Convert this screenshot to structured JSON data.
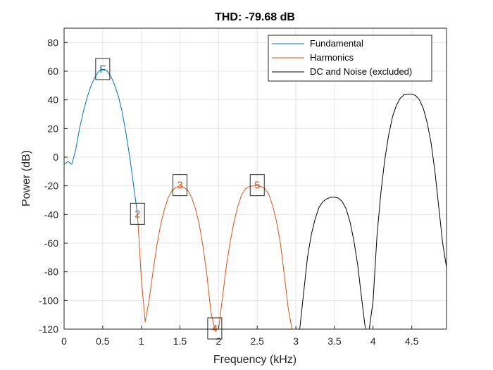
{
  "chart_data": {
    "type": "line",
    "title": "THD: -79.68 dB",
    "xlabel": "Frequency (kHz)",
    "ylabel": "Power (dB)",
    "xlim": [
      0,
      4.95
    ],
    "ylim": [
      -120,
      90
    ],
    "xticks": [
      0,
      0.5,
      1,
      1.5,
      2,
      2.5,
      3,
      3.5,
      4,
      4.5
    ],
    "xtick_labels": [
      "0",
      "0.5",
      "1",
      "1.5",
      "2",
      "2.5",
      "3",
      "3.5",
      "4",
      "4.5"
    ],
    "yticks": [
      -120,
      -100,
      -80,
      -60,
      -40,
      -20,
      0,
      20,
      40,
      60,
      80
    ],
    "ytick_labels": [
      "-120",
      "-100",
      "-80",
      "-60",
      "-40",
      "-20",
      "0",
      "20",
      "40",
      "60",
      "80"
    ],
    "grid": true,
    "legend_position": "top-right",
    "series": [
      {
        "name": "Fundamental",
        "color": "#0072BD",
        "x": [
          0,
          0.05,
          0.1,
          0.15,
          0.2,
          0.25,
          0.3,
          0.35,
          0.4,
          0.45,
          0.5,
          0.55,
          0.6,
          0.65,
          0.7,
          0.75,
          0.8,
          0.85,
          0.9,
          0.95
        ],
        "y": [
          -5,
          -3,
          -5,
          5,
          20,
          32,
          42,
          50,
          56,
          60,
          61,
          60.5,
          57,
          51,
          43,
          32,
          17,
          0,
          -20,
          -40
        ]
      },
      {
        "name": "Harmonics",
        "color": "#D95319",
        "x": [
          0.95,
          1.0,
          1.05,
          1.1,
          1.15,
          1.2,
          1.25,
          1.3,
          1.35,
          1.4,
          1.45,
          1.5,
          1.55,
          1.6,
          1.65,
          1.7,
          1.75,
          1.8,
          1.85,
          1.9,
          1.95,
          2.0,
          2.05,
          2.1,
          2.15,
          2.2,
          2.25,
          2.3,
          2.35,
          2.4,
          2.45,
          2.5,
          2.55,
          2.6,
          2.65,
          2.7,
          2.75,
          2.8,
          2.85,
          2.9,
          2.95
        ],
        "y": [
          -40,
          -85,
          -115,
          -100,
          -80,
          -62,
          -47,
          -36,
          -28,
          -23,
          -21,
          -20,
          -21,
          -23,
          -28,
          -36,
          -47,
          -63,
          -83,
          -108,
          -122,
          -120,
          -98,
          -76,
          -59,
          -45,
          -34,
          -26,
          -22,
          -20.5,
          -20,
          -20,
          -20.5,
          -22,
          -26,
          -34,
          -45,
          -60,
          -82,
          -105,
          -122
        ]
      },
      {
        "name": "DC and Noise (excluded)",
        "color": "#000000",
        "x": [
          2.95,
          3.0,
          3.05,
          3.1,
          3.15,
          3.2,
          3.25,
          3.3,
          3.35,
          3.4,
          3.45,
          3.5,
          3.55,
          3.6,
          3.65,
          3.7,
          3.75,
          3.8,
          3.85,
          3.9,
          3.95,
          4.0,
          4.05,
          4.1,
          4.15,
          4.2,
          4.25,
          4.3,
          4.35,
          4.4,
          4.45,
          4.5,
          4.55,
          4.6,
          4.65,
          4.7,
          4.75,
          4.8,
          4.85,
          4.9,
          4.95
        ],
        "y": [
          -122,
          -122,
          -120,
          -95,
          -70,
          -54,
          -43,
          -35,
          -31,
          -29,
          -28,
          -28,
          -28.5,
          -31,
          -36,
          -45,
          -58,
          -75,
          -98,
          -120,
          -122,
          -100,
          -55,
          -25,
          -2,
          15,
          28,
          36,
          41,
          43.5,
          44,
          44,
          43,
          40,
          34,
          24,
          10,
          -10,
          -35,
          -60,
          -77
        ]
      }
    ],
    "markers": [
      {
        "text": "F",
        "x": 0.5,
        "y": 61,
        "color": "#0072BD"
      },
      {
        "text": "2",
        "x": 0.95,
        "y": -40,
        "color": "#D95319"
      },
      {
        "text": "3",
        "x": 1.5,
        "y": -20,
        "color": "#D95319"
      },
      {
        "text": "4",
        "x": 1.95,
        "y": -120,
        "color": "#D95319"
      },
      {
        "text": "5",
        "x": 2.5,
        "y": -20,
        "color": "#D95319"
      }
    ]
  }
}
